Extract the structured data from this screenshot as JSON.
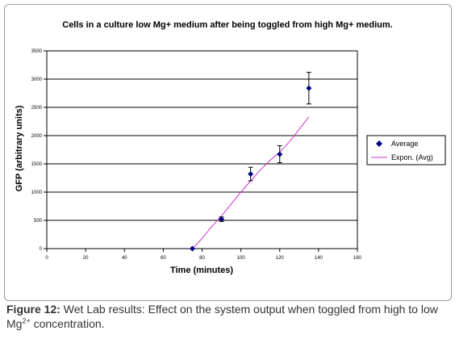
{
  "chart_data": {
    "type": "scatter",
    "title": "Cells in a culture low Mg+ medium after being toggled from high Mg+ medium.",
    "xlabel": "Time (minutes)",
    "ylabel": "GFP (arbitrary units)",
    "xlim": [
      0,
      160
    ],
    "ylim": [
      0,
      3500
    ],
    "x_ticks": [
      "0",
      "20",
      "40",
      "60",
      "80",
      "100",
      "120",
      "140",
      "160"
    ],
    "y_ticks": [
      "0",
      "500",
      "1000",
      "1500",
      "2000",
      "2500",
      "3000",
      "3500"
    ],
    "y_gridlines": true,
    "legend_position": "right",
    "series": [
      {
        "name": "Average",
        "kind": "points-with-error-bars",
        "color": "#000080",
        "x": [
          75,
          90,
          105,
          120,
          135
        ],
        "y": [
          0,
          520,
          1320,
          1670,
          2840
        ],
        "error": [
          0,
          40,
          120,
          150,
          280
        ]
      },
      {
        "name": "Expon. (Avg)",
        "kind": "trendline",
        "color": "#cc33cc",
        "x": [
          75,
          80,
          85,
          90,
          95,
          100,
          105,
          110,
          115,
          120,
          125,
          130,
          135
        ],
        "y": [
          0,
          180,
          390,
          580,
          790,
          1000,
          1200,
          1390,
          1560,
          1710,
          1890,
          2110,
          2330
        ]
      }
    ]
  },
  "caption": {
    "label": "Figure 12:",
    "text_before": " Wet Lab results: Effect on the system output when toggled from high to low Mg",
    "superscript": "2+",
    "text_after": " concentration."
  }
}
